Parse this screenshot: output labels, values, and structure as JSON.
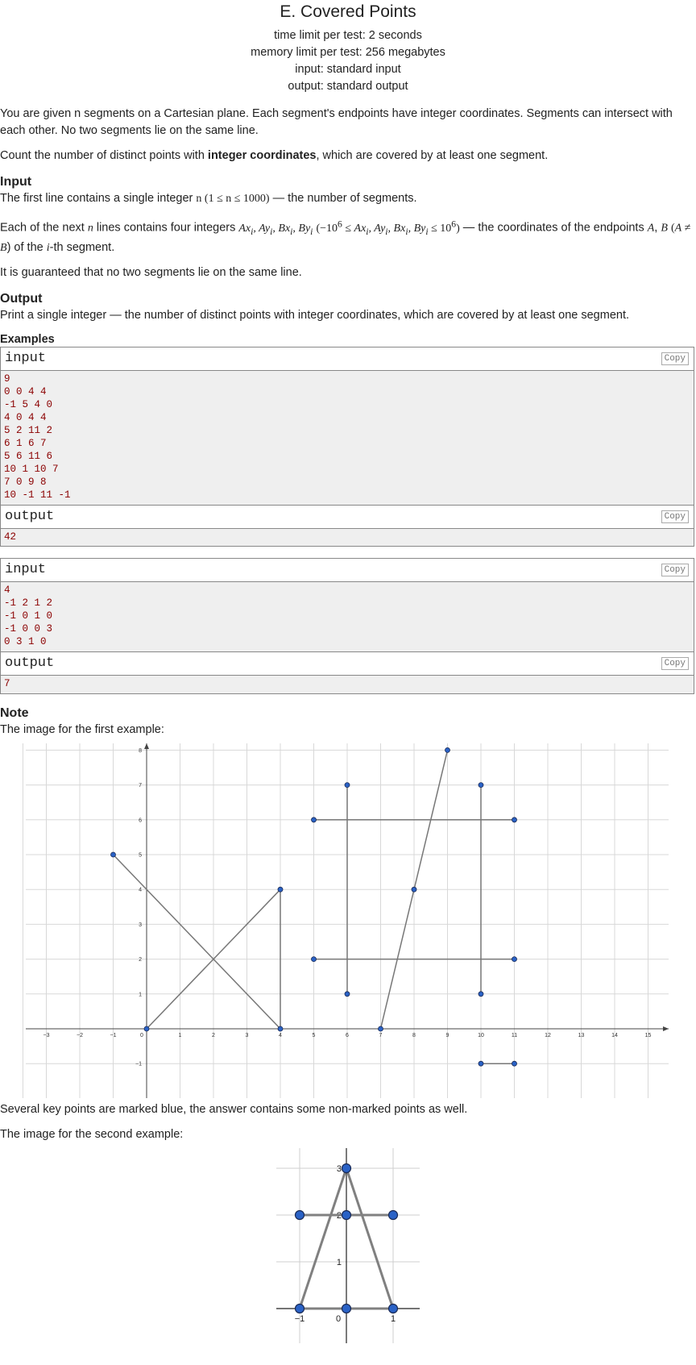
{
  "problem": {
    "title": "E. Covered Points",
    "time_limit": "time limit per test: 2 seconds",
    "memory_limit": "memory limit per test: 256 megabytes",
    "input_file": "input: standard input",
    "output_file": "output: standard output"
  },
  "statement": {
    "p1": "You are given n segments on a Cartesian plane. Each segment's endpoints have integer coordinates. Segments can intersect with each other. No two segments lie on the same line.",
    "p2_before": "Count the number of distinct points with ",
    "p2_bold": "integer coordinates",
    "p2_after": ", which are covered by at least one segment."
  },
  "input_section": {
    "heading": "Input",
    "line1_a": "The first line contains a single integer ",
    "line1_math": "n (1 ≤ n ≤ 1000)",
    "line1_b": " — the number of segments.",
    "line2_a": "Each of the next ",
    "line2_n": "n",
    "line2_b": " lines contains four integers ",
    "line2_math": "Ax",
    "line2_c": " — the coordinates of the endpoints ",
    "line2_d": ") of the ",
    "line2_e": "-th segment.",
    "line3": "It is guaranteed that no two segments lie on the same line."
  },
  "output_section": {
    "heading": "Output",
    "line": "Print a single integer — the number of distinct points with integer coordinates, which are covered by at least one segment."
  },
  "examples": {
    "heading": "Examples",
    "input_label": "input",
    "output_label": "output",
    "copy_label": "Copy",
    "ex1_input": "9\n0 0 4 4\n-1 5 4 0\n4 0 4 4\n5 2 11 2\n6 1 6 7\n5 6 11 6\n10 1 10 7\n7 0 9 8\n10 -1 11 -1",
    "ex1_output": "42",
    "ex2_input": "4\n-1 2 1 2\n-1 0 1 0\n-1 0 0 3\n0 3 1 0",
    "ex2_output": "7"
  },
  "note": {
    "heading": "Note",
    "line1": "The image for the first example:",
    "line2": "Several key points are marked blue, the answer contains some non-marked points as well.",
    "line3": "The image for the second example:"
  },
  "figure1": {
    "x_ticks": [
      "−3",
      "−2",
      "−1",
      "0",
      "1",
      "2",
      "3",
      "4",
      "5",
      "6",
      "7",
      "8",
      "9",
      "10",
      "11",
      "12",
      "13",
      "14",
      "15"
    ],
    "y_ticks": [
      "−1",
      "1",
      "2",
      "3",
      "4",
      "5",
      "6",
      "7",
      "8"
    ],
    "segments": [
      [
        0,
        0,
        4,
        4
      ],
      [
        -1,
        5,
        4,
        0
      ],
      [
        4,
        0,
        4,
        4
      ],
      [
        5,
        2,
        11,
        2
      ],
      [
        6,
        1,
        6,
        7
      ],
      [
        5,
        6,
        11,
        6
      ],
      [
        10,
        1,
        10,
        7
      ],
      [
        7,
        0,
        9,
        8
      ],
      [
        10,
        -1,
        11,
        -1
      ]
    ],
    "points": [
      [
        0,
        0
      ],
      [
        4,
        4
      ],
      [
        -1,
        5
      ],
      [
        4,
        0
      ],
      [
        5,
        2
      ],
      [
        11,
        2
      ],
      [
        6,
        1
      ],
      [
        6,
        7
      ],
      [
        5,
        6
      ],
      [
        11,
        6
      ],
      [
        10,
        1
      ],
      [
        10,
        7
      ],
      [
        7,
        0
      ],
      [
        9,
        8
      ],
      [
        8,
        4
      ],
      [
        10,
        -1
      ],
      [
        11,
        -1
      ]
    ],
    "point_color": "#2a62c6"
  },
  "figure2": {
    "x_ticks": [
      "−1",
      "0",
      "1"
    ],
    "y_ticks": [
      "1",
      "2",
      "3"
    ],
    "segments": [
      [
        -1,
        2,
        1,
        2
      ],
      [
        -1,
        0,
        1,
        0
      ],
      [
        -1,
        0,
        0,
        3
      ],
      [
        0,
        3,
        1,
        0
      ]
    ],
    "points": [
      [
        -1,
        2
      ],
      [
        0,
        2
      ],
      [
        1,
        2
      ],
      [
        -1,
        0
      ],
      [
        0,
        0
      ],
      [
        1,
        0
      ],
      [
        0,
        3
      ]
    ],
    "point_color": "#2a62c6"
  }
}
